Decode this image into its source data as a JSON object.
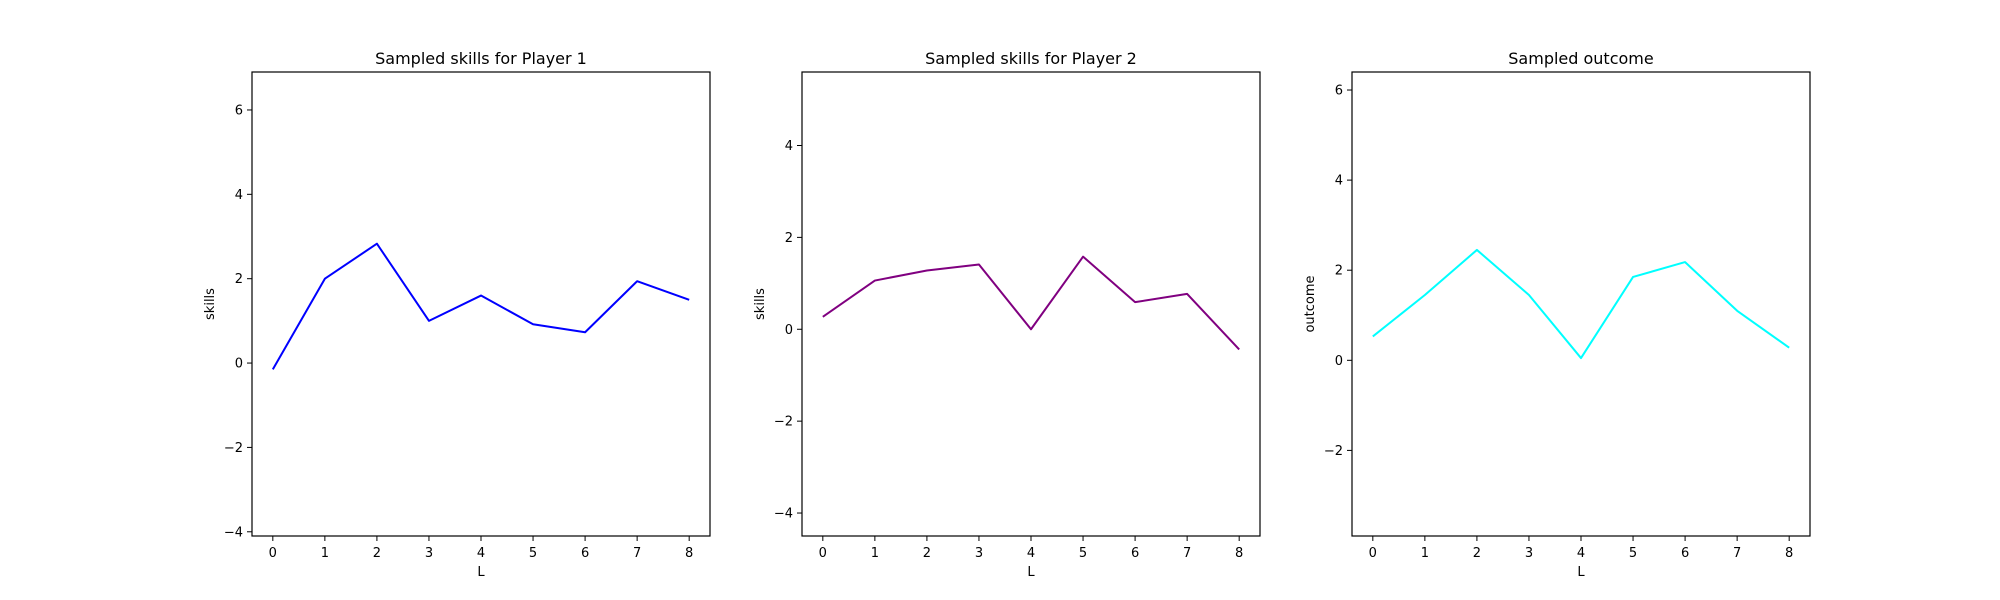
{
  "chart_data": [
    {
      "type": "line",
      "title": "Sampled skills for Player 1",
      "xlabel": "L",
      "ylabel": "skills",
      "x": [
        0,
        1,
        2,
        3,
        4,
        5,
        6,
        7,
        8
      ],
      "xticks": [
        0,
        1,
        2,
        3,
        4,
        5,
        6,
        7,
        8
      ],
      "yticks": [
        -4,
        -2,
        0,
        2,
        4,
        6
      ],
      "xlim": [
        -0.4,
        8.4
      ],
      "ylim": [
        -4.1,
        6.9
      ],
      "grid": false,
      "series": [
        {
          "values": [
            -0.15,
            2.0,
            2.83,
            1.0,
            1.6,
            0.92,
            0.73,
            1.94,
            1.5
          ],
          "color": "#0000ff"
        }
      ]
    },
    {
      "type": "line",
      "title": "Sampled skills for Player 2",
      "xlabel": "L",
      "ylabel": "skills",
      "x": [
        0,
        1,
        2,
        3,
        4,
        5,
        6,
        7,
        8
      ],
      "xticks": [
        0,
        1,
        2,
        3,
        4,
        5,
        6,
        7,
        8
      ],
      "yticks": [
        -4,
        -2,
        0,
        2,
        4
      ],
      "xlim": [
        -0.4,
        8.4
      ],
      "ylim": [
        -4.5,
        5.6
      ],
      "grid": false,
      "series": [
        {
          "values": [
            0.27,
            1.06,
            1.28,
            1.41,
            0.0,
            1.58,
            0.59,
            0.77,
            -0.44
          ],
          "color": "#800080"
        }
      ]
    },
    {
      "type": "line",
      "title": "Sampled outcome",
      "xlabel": "L",
      "ylabel": "outcome",
      "x": [
        0,
        1,
        2,
        3,
        4,
        5,
        6,
        7,
        8
      ],
      "xticks": [
        0,
        1,
        2,
        3,
        4,
        5,
        6,
        7,
        8
      ],
      "yticks": [
        -2,
        0,
        2,
        4,
        6
      ],
      "xlim": [
        -0.4,
        8.4
      ],
      "ylim": [
        -3.9,
        6.4
      ],
      "grid": false,
      "series": [
        {
          "values": [
            0.53,
            1.45,
            2.45,
            1.45,
            0.05,
            1.85,
            2.18,
            1.1,
            0.28
          ],
          "color": "#00ffff"
        }
      ]
    }
  ]
}
